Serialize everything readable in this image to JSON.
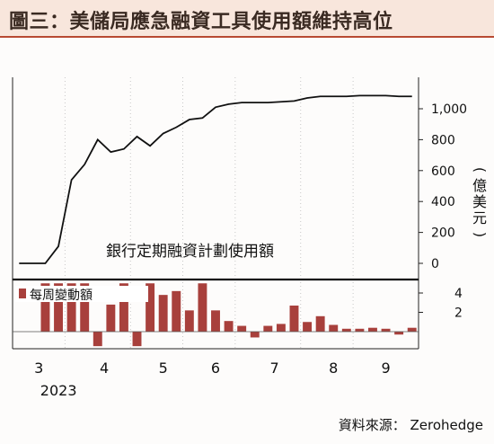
{
  "title": "圖三：美儲局應急融資工具使用額維持高位",
  "source": "資料來源： Zerohedge",
  "colors": {
    "title_bg": "#f8e6dc",
    "title_rule": "#b84a32",
    "bar": "#a8403c",
    "line": "#111111"
  },
  "chart_data": [
    {
      "type": "line",
      "series": [
        {
          "name": "銀行定期融資計劃使用額",
          "values": [
            0,
            0,
            0,
            110,
            540,
            640,
            800,
            720,
            740,
            820,
            760,
            840,
            880,
            930,
            940,
            1010,
            1030,
            1040,
            1040,
            1040,
            1045,
            1050,
            1070,
            1080,
            1080,
            1080,
            1085,
            1085,
            1085,
            1080,
            1080
          ]
        }
      ],
      "ylabel": "(億美元)",
      "y_ticks": [
        "0",
        "200",
        "400",
        "600",
        "800",
        "1,000"
      ],
      "ylim": [
        0,
        1200
      ],
      "annotation": "銀行定期融資計劃使用額"
    },
    {
      "type": "bar",
      "series": [
        {
          "name": "每周變動額",
          "values": [
            0,
            0,
            5,
            5,
            5,
            5,
            -1.5,
            2.8,
            5,
            -1.5,
            5,
            3.8,
            4.2,
            2.2,
            5,
            2.2,
            1.1,
            0.6,
            -0.6,
            0.6,
            0.8,
            2.7,
            1,
            1.6,
            0.7,
            0.3,
            0.3,
            0.4,
            0.3,
            -0.3,
            0.4
          ]
        }
      ],
      "y_ticks": [
        "2",
        "4"
      ],
      "ylim": [
        -2,
        5
      ]
    }
  ],
  "x_ticks": [
    "3",
    "4",
    "5",
    "6",
    "7",
    "8",
    "9"
  ],
  "x_year": "2023"
}
